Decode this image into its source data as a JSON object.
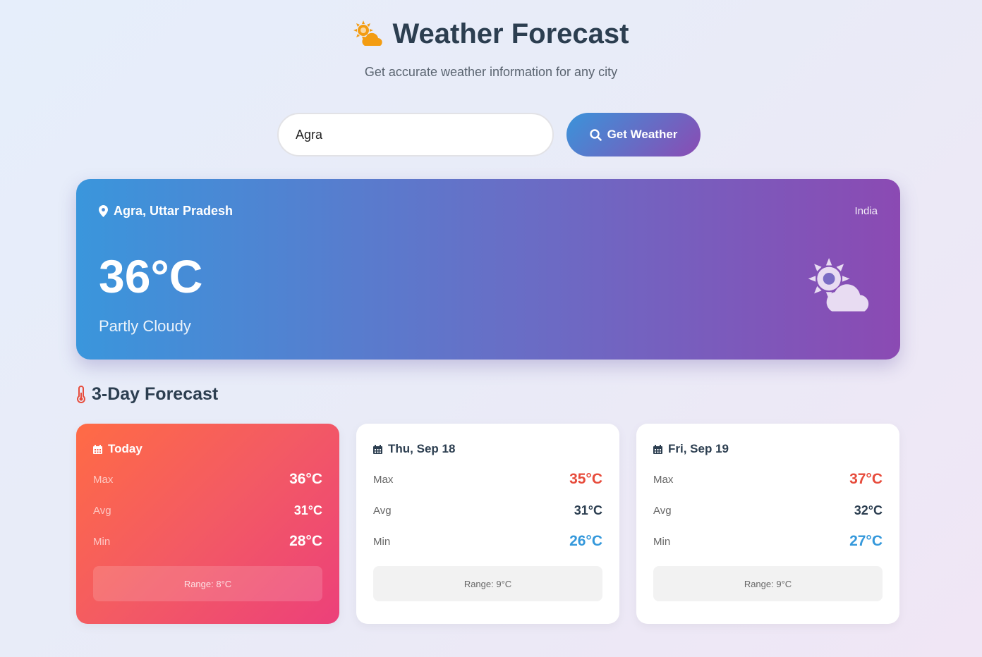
{
  "header": {
    "title": "Weather Forecast",
    "subtitle": "Get accurate weather information for any city",
    "icon": "sun-cloud-icon"
  },
  "search": {
    "value": "Agra",
    "button_label": "Get Weather"
  },
  "current": {
    "location": "Agra, Uttar Pradesh",
    "country": "India",
    "temperature": "36°C",
    "condition": "Partly Cloudy"
  },
  "forecast": {
    "heading": "3-Day Forecast",
    "labels": {
      "max": "Max",
      "avg": "Avg",
      "min": "Min"
    },
    "days": [
      {
        "day": "Today",
        "max": "36°C",
        "avg": "31°C",
        "min": "28°C",
        "range": "Range: 8°C"
      },
      {
        "day": "Thu, Sep 18",
        "max": "35°C",
        "avg": "31°C",
        "min": "26°C",
        "range": "Range: 9°C"
      },
      {
        "day": "Fri, Sep 19",
        "max": "37°C",
        "avg": "32°C",
        "min": "27°C",
        "range": "Range: 9°C"
      }
    ]
  },
  "colors": {
    "accent_start": "#3a94da",
    "accent_end": "#8b4bb3",
    "max": "#e74c3c",
    "min": "#3498db"
  }
}
